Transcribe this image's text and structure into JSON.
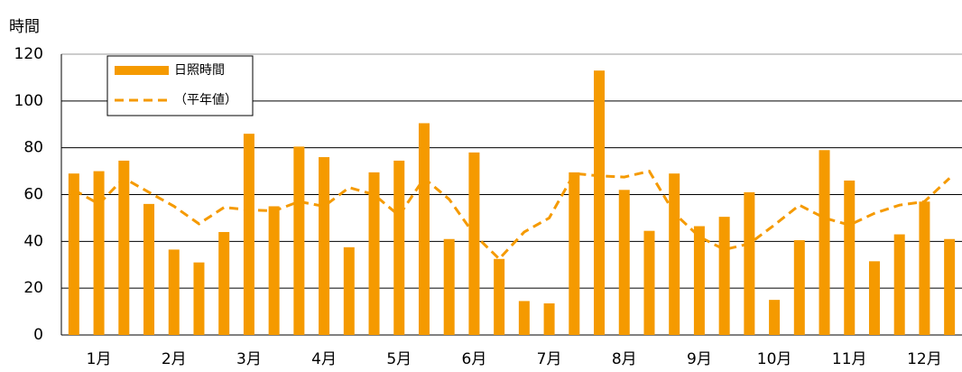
{
  "chart_data": {
    "type": "bar",
    "y_label": "時間",
    "categories": [
      null,
      "1月",
      null,
      null,
      "2月",
      null,
      null,
      "3月",
      null,
      null,
      "4月",
      null,
      null,
      "5月",
      null,
      null,
      "6月",
      null,
      null,
      "7月",
      null,
      null,
      "8月",
      null,
      null,
      "9月",
      null,
      null,
      "10月",
      null,
      null,
      "11月",
      null,
      null,
      "12月",
      null
    ],
    "series": [
      {
        "name": "日照時間",
        "type": "bar",
        "color": "#f59a00",
        "values": [
          69,
          70,
          74.5,
          56,
          36.5,
          31,
          44,
          86,
          55,
          80.5,
          76,
          37.5,
          69.5,
          74.5,
          90.5,
          41,
          78,
          32.5,
          14.5,
          13.5,
          69.5,
          113,
          62,
          44.5,
          69,
          46.5,
          50.5,
          61,
          15,
          40.5,
          79,
          66,
          31.5,
          43,
          57,
          41
        ]
      },
      {
        "name": "（平年値）",
        "type": "line",
        "color": "#f59a00",
        "linestyle": "dashed",
        "values": [
          62,
          56,
          67,
          61,
          55,
          47.5,
          54.5,
          53.5,
          53,
          57,
          55,
          63,
          60,
          51,
          67,
          58,
          43,
          32.5,
          44,
          50,
          69,
          68,
          67.5,
          70,
          52,
          42,
          36.5,
          39,
          47,
          55.5,
          50,
          47,
          52,
          55.5,
          57,
          67
        ]
      }
    ],
    "ylim": [
      0,
      120
    ],
    "yticks": [
      0,
      20,
      40,
      60,
      80,
      100,
      120
    ],
    "grid": true,
    "legend": "upper left"
  }
}
